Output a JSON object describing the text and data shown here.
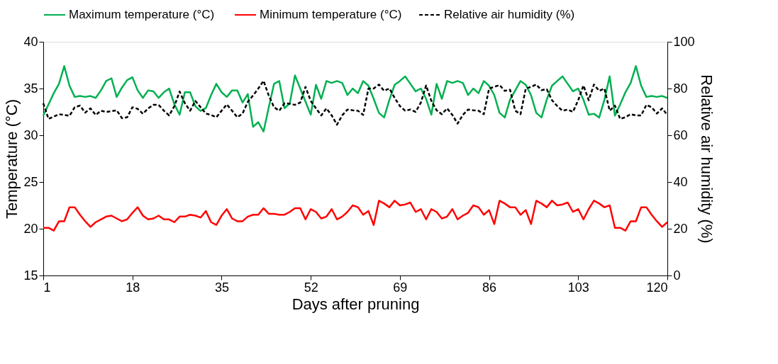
{
  "chart_data": {
    "type": "line",
    "xlabel": "Days after pruning",
    "ylabel": "Temperature (°C)",
    "y2label": "Relative air humidity (%)",
    "x": [
      1,
      2,
      3,
      4,
      5,
      6,
      7,
      8,
      9,
      10,
      11,
      12,
      13,
      14,
      15,
      16,
      17,
      18,
      19,
      20,
      21,
      22,
      23,
      24,
      25,
      26,
      27,
      28,
      29,
      30,
      31,
      32,
      33,
      34,
      35,
      36,
      37,
      38,
      39,
      40,
      41,
      42,
      43,
      44,
      45,
      46,
      47,
      48,
      49,
      50,
      51,
      52,
      53,
      54,
      55,
      56,
      57,
      58,
      59,
      60,
      61,
      62,
      63,
      64,
      65,
      66,
      67,
      68,
      69,
      70,
      71,
      72,
      73,
      74,
      75,
      76,
      77,
      78,
      79,
      80,
      81,
      82,
      83,
      84,
      85,
      86,
      87,
      88,
      89,
      90,
      91,
      92,
      93,
      94,
      95,
      96,
      97,
      98,
      99,
      100,
      101,
      102,
      103,
      104,
      105,
      106,
      107,
      108,
      109,
      110,
      111,
      112,
      113,
      114,
      115,
      116,
      117,
      118,
      119,
      120
    ],
    "xlim": [
      1,
      120
    ],
    "xticks": [
      1,
      18,
      35,
      52,
      69,
      86,
      103,
      120
    ],
    "ylim": [
      15,
      40
    ],
    "yticks": [
      15,
      20,
      25,
      30,
      35,
      40
    ],
    "y2lim": [
      0,
      100
    ],
    "y2ticks": [
      0,
      20,
      40,
      60,
      80,
      100
    ],
    "grid": false,
    "legend": "top",
    "series": [
      {
        "name": "Maximum temperature  (°C)",
        "color": "#00b050",
        "line_style": "solid",
        "values": [
          32.1,
          33.3,
          34.5,
          35.5,
          37.4,
          35.3,
          34.1,
          34.2,
          34.1,
          34.2,
          34.0,
          34.8,
          35.8,
          36.1,
          34.1,
          35.1,
          35.9,
          36.2,
          34.8,
          34.0,
          34.8,
          34.7,
          34.0,
          34.6,
          35.0,
          33.3,
          32.2,
          34.6,
          34.6,
          33.1,
          32.6,
          32.9,
          34.3,
          35.5,
          34.6,
          34.1,
          34.8,
          34.8,
          33.5,
          34.4,
          30.9,
          31.4,
          30.4,
          33.0,
          35.5,
          35.8,
          32.9,
          33.4,
          36.4,
          35.0,
          33.6,
          32.2,
          35.4,
          33.9,
          35.8,
          35.6,
          35.8,
          35.6,
          34.3,
          35.0,
          34.5,
          35.8,
          35.3,
          33.9,
          32.4,
          31.9,
          33.8,
          35.4,
          35.8,
          36.3,
          35.5,
          34.7,
          35.0,
          33.9,
          32.2,
          35.5,
          33.9,
          35.8,
          35.6,
          35.8,
          35.6,
          34.3,
          35.0,
          34.5,
          35.8,
          35.3,
          34.3,
          32.4,
          31.9,
          33.8,
          34.8,
          35.8,
          35.4,
          34.3,
          32.4,
          31.9,
          33.8,
          35.3,
          35.8,
          36.3,
          35.5,
          34.7,
          35.0,
          33.8,
          32.2,
          32.3,
          31.9,
          33.8,
          36.3,
          32.1,
          33.3,
          34.6,
          35.6,
          37.4,
          35.3,
          34.1,
          34.2,
          34.1,
          34.2,
          34.0
        ]
      },
      {
        "name": "Minimum temperature (°C)",
        "color": "#ff0000",
        "line_style": "solid",
        "values": [
          20.1,
          20.1,
          19.8,
          20.8,
          20.8,
          22.3,
          22.3,
          21.5,
          20.8,
          20.2,
          20.7,
          21.0,
          21.3,
          21.4,
          21.1,
          20.8,
          21.0,
          21.7,
          22.3,
          21.4,
          21.0,
          21.1,
          21.4,
          21.0,
          21.0,
          20.7,
          21.3,
          21.3,
          21.5,
          21.4,
          21.2,
          21.9,
          20.7,
          20.4,
          21.4,
          22.1,
          21.1,
          20.8,
          20.8,
          21.3,
          21.5,
          21.5,
          22.2,
          21.6,
          21.6,
          21.5,
          21.5,
          21.8,
          22.2,
          22.2,
          21.0,
          22.1,
          21.8,
          21.1,
          21.3,
          22.1,
          21.0,
          21.3,
          21.8,
          22.5,
          22.3,
          21.5,
          21.9,
          20.4,
          23.0,
          22.7,
          22.3,
          23.0,
          22.5,
          22.6,
          22.8,
          21.8,
          22.1,
          21.0,
          22.1,
          21.8,
          21.1,
          21.3,
          22.1,
          21.0,
          21.4,
          21.7,
          22.5,
          22.3,
          21.5,
          22.0,
          20.5,
          23.0,
          22.7,
          22.3,
          22.3,
          21.5,
          22.0,
          20.5,
          23.0,
          22.7,
          22.3,
          23.0,
          22.5,
          22.6,
          22.8,
          21.8,
          22.1,
          21.0,
          22.1,
          23.0,
          22.7,
          22.3,
          22.5,
          20.1,
          20.1,
          19.8,
          20.8,
          20.8,
          22.3,
          22.3,
          21.5,
          20.8,
          20.2,
          20.7
        ]
      },
      {
        "name": "Relative air humidity (%)",
        "color": "#000000",
        "line_style": "dashed",
        "axis": "y2",
        "values": [
          73.7,
          67.0,
          68.0,
          69.0,
          68.7,
          68.3,
          72.0,
          72.7,
          69.7,
          71.5,
          68.7,
          70.5,
          70.0,
          70.3,
          70.7,
          67.3,
          67.7,
          72.0,
          71.3,
          69.2,
          71.5,
          73.0,
          73.0,
          70.5,
          68.5,
          72.5,
          78.7,
          73.7,
          70.5,
          74.7,
          72.0,
          69.3,
          68.7,
          67.7,
          70.5,
          73.2,
          70.5,
          67.7,
          69.3,
          74.3,
          77.0,
          80.0,
          83.3,
          77.0,
          72.0,
          70.5,
          73.7,
          73.5,
          73.0,
          74.0,
          80.7,
          74.7,
          71.5,
          68.5,
          71.5,
          68.5,
          64.5,
          68.5,
          71.0,
          70.7,
          70.5,
          68.7,
          80.0,
          80.0,
          81.7,
          79.0,
          80.0,
          76.0,
          72.5,
          70.5,
          71.0,
          70.0,
          74.0,
          81.3,
          74.7,
          70.7,
          69.0,
          71.5,
          68.7,
          65.0,
          68.7,
          71.0,
          70.7,
          70.5,
          69.0,
          80.0,
          80.7,
          81.5,
          79.0,
          79.5,
          70.5,
          69.0,
          80.0,
          80.7,
          81.7,
          79.3,
          79.7,
          75.0,
          72.5,
          70.5,
          71.0,
          70.0,
          75.0,
          81.3,
          75.0,
          81.7,
          79.0,
          80.0,
          70.5,
          72.7,
          67.0,
          67.7,
          69.0,
          68.5,
          68.5,
          73.0,
          72.0,
          69.3,
          71.5,
          68.7
        ]
      }
    ]
  }
}
